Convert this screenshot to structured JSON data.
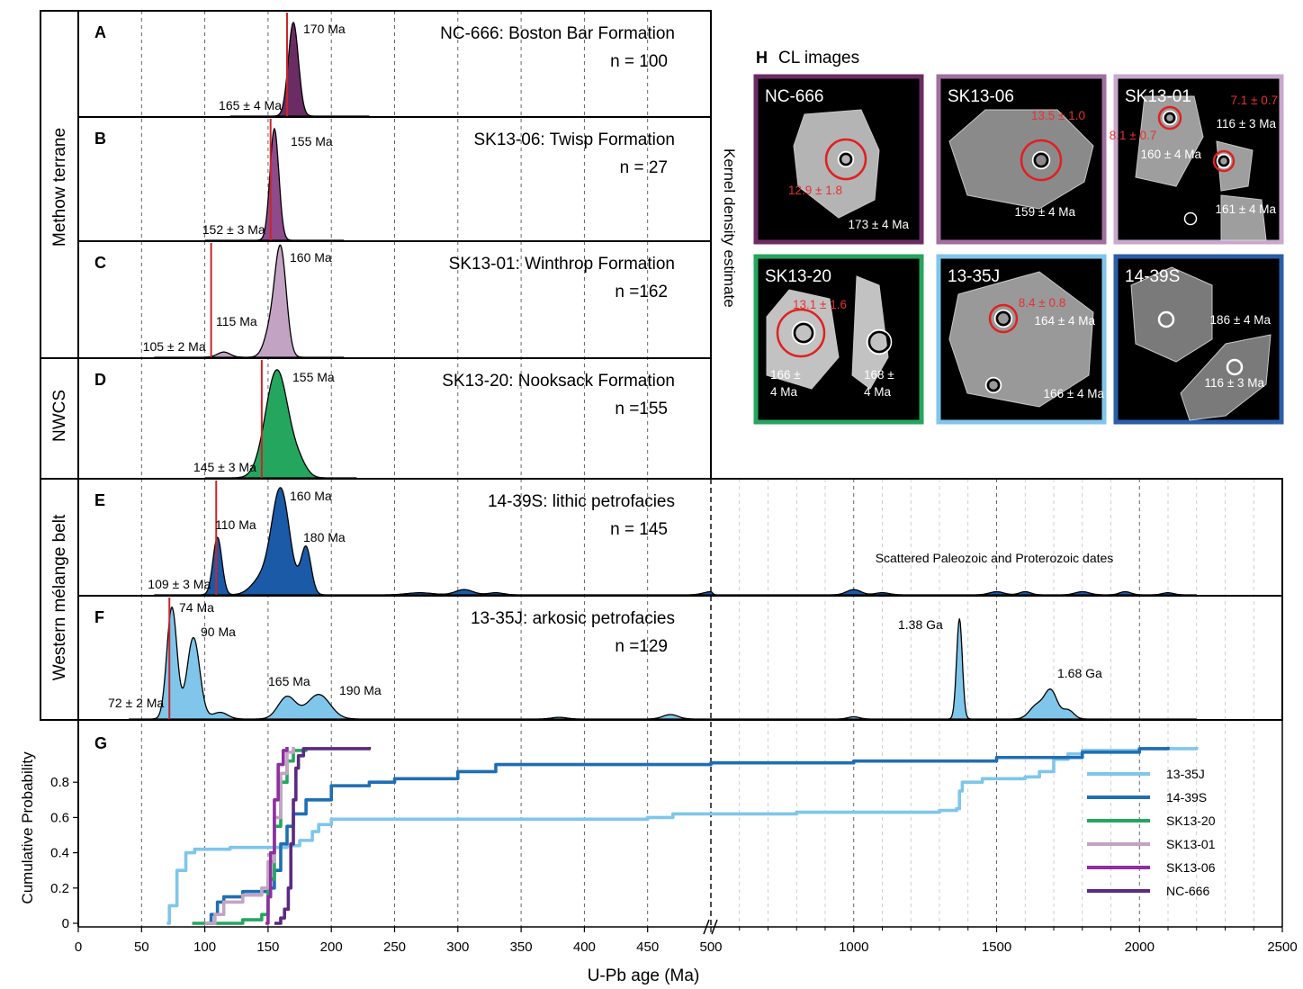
{
  "panels": [
    {
      "letter": "A",
      "title": "NC-666: Boston Bar Formation",
      "n": "n = 100",
      "peaks": [
        "170 Ma"
      ],
      "min_label": "165 ± 4 Ma",
      "red_line_age": 165,
      "color": "#6b2c64"
    },
    {
      "letter": "B",
      "title": "SK13-06: Twisp Formation",
      "n": "n = 27",
      "peaks": [
        "155 Ma"
      ],
      "min_label": "152 ± 3 Ma",
      "red_line_age": 152,
      "color": "#8e4a8a"
    },
    {
      "letter": "C",
      "title": "SK13-01: Winthrop Formation",
      "n": "n =162",
      "peaks": [
        "160 Ma",
        "115 Ma"
      ],
      "min_label": "105 ± 2 Ma",
      "red_line_age": 105,
      "color": "#c3a3c4"
    },
    {
      "letter": "D",
      "title": "SK13-20: Nooksack Formation",
      "n": "n =155",
      "peaks": [
        "155 Ma"
      ],
      "min_label": "145 ± 3 Ma",
      "red_line_age": 145,
      "color": "#25a65e"
    },
    {
      "letter": "E",
      "title": "14-39S: lithic petrofacies",
      "n": "n = 145",
      "peaks": [
        "160 Ma",
        "110 Ma",
        "180 Ma"
      ],
      "min_label": "109 ± 3 Ma",
      "red_line_age": 109,
      "color": "#1a5aa6",
      "note": "Scattered Paleozoic and Proterozoic dates"
    },
    {
      "letter": "F",
      "title": "13-35J: arkosic petrofacies",
      "n": "n =129",
      "peaks": [
        "74 Ma",
        "90 Ma",
        "165 Ma",
        "190 Ma",
        "1.38 Ga",
        "1.68 Ga"
      ],
      "min_label": "72 ± 2 Ma",
      "red_line_age": 72,
      "color": "#7fc6ea"
    }
  ],
  "group_labels": [
    "Methow terrane",
    "NWCS",
    "Western mélange belt"
  ],
  "kde_label": "Kernel density estimate",
  "panel_g_letter": "G",
  "cl": {
    "title": "CL images",
    "letter": "H",
    "images": [
      {
        "sample": "NC-666",
        "border": "#6b2c64",
        "labels_white": [
          "173 ± 4 Ma"
        ],
        "labels_red": [
          "12.9 ± 1.8"
        ]
      },
      {
        "sample": "SK13-06",
        "border": "#a070a0",
        "labels_white": [
          "159 ± 4 Ma"
        ],
        "labels_red": [
          "13.5 ± 1.0"
        ]
      },
      {
        "sample": "SK13-01",
        "border": "#c8a8cc",
        "labels_white": [
          "116 ± 3 Ma",
          "160 ± 4 Ma",
          "161 ± 4 Ma"
        ],
        "labels_red": [
          "7.1 ± 0.7",
          "8.1 ± 0.7"
        ]
      },
      {
        "sample": "SK13-20",
        "border": "#25a65e",
        "labels_white": [
          "166 ±",
          "4 Ma",
          "168 ±",
          "4 Ma"
        ],
        "labels_red": [
          "13.1 ± 1.6"
        ]
      },
      {
        "sample": "13-35J",
        "border": "#7fc6ea",
        "labels_white": [
          "164 ± 4 Ma",
          "166 ± 4 Ma"
        ],
        "labels_red": [
          "8.4 ± 0.8"
        ]
      },
      {
        "sample": "14-39S",
        "border": "#2a5ea8",
        "labels_white": [
          "186 ± 4 Ma",
          "116 ± 3 Ma"
        ],
        "labels_red": []
      }
    ]
  },
  "colors": {
    "red_line": "#c8252b",
    "frame": "#000000"
  },
  "chart_data": {
    "type": "line",
    "ylabel": "Cumulative Probability",
    "xlabel": "U-Pb age (Ma)",
    "xticks": [
      "0",
      "50",
      "100",
      "150",
      "200",
      "250",
      "300",
      "350",
      "400",
      "450",
      "500",
      "1000",
      "1500",
      "2000",
      "2500"
    ],
    "yticks": [
      "0",
      "0.2",
      "0.4",
      "0.6",
      "0.8"
    ],
    "axis_break_at": 500,
    "xlim": [
      0,
      2500
    ],
    "ylim": [
      0,
      1
    ],
    "legend_position": "lower-right",
    "series": [
      {
        "name": "13-35J",
        "color": "#7fc6ea",
        "x": [
          70,
          72,
          78,
          85,
          92,
          100,
          110,
          120,
          150,
          165,
          175,
          185,
          190,
          200,
          300,
          450,
          470,
          500,
          800,
          1300,
          1360,
          1370,
          1380,
          1450,
          1600,
          1650,
          1700,
          1750,
          1800,
          2000,
          2200
        ],
        "y": [
          0,
          0.1,
          0.3,
          0.4,
          0.42,
          0.42,
          0.42,
          0.43,
          0.43,
          0.44,
          0.47,
          0.52,
          0.56,
          0.59,
          0.59,
          0.6,
          0.62,
          0.62,
          0.63,
          0.64,
          0.65,
          0.75,
          0.8,
          0.82,
          0.83,
          0.86,
          0.93,
          0.96,
          0.98,
          0.99,
          1
        ]
      },
      {
        "name": "14-39S",
        "color": "#1f6eb4",
        "x": [
          100,
          105,
          110,
          115,
          130,
          150,
          155,
          160,
          165,
          170,
          180,
          200,
          230,
          250,
          300,
          330,
          400,
          500,
          1000,
          1500,
          1800,
          2000,
          2100
        ],
        "y": [
          0,
          0.05,
          0.12,
          0.15,
          0.18,
          0.2,
          0.3,
          0.45,
          0.55,
          0.62,
          0.7,
          0.78,
          0.8,
          0.82,
          0.86,
          0.9,
          0.9,
          0.91,
          0.92,
          0.94,
          0.97,
          0.99,
          1
        ]
      },
      {
        "name": "SK13-20",
        "color": "#25a65e",
        "x": [
          90,
          130,
          145,
          150,
          155,
          160,
          165,
          170,
          180
        ],
        "y": [
          0,
          0.02,
          0.05,
          0.25,
          0.55,
          0.8,
          0.92,
          0.98,
          1
        ]
      },
      {
        "name": "SK13-01",
        "color": "#c3a3c4",
        "x": [
          100,
          108,
          115,
          130,
          145,
          150,
          155,
          160,
          165,
          170
        ],
        "y": [
          0,
          0.05,
          0.12,
          0.16,
          0.2,
          0.35,
          0.6,
          0.85,
          0.97,
          1
        ]
      },
      {
        "name": "SK13-06",
        "color": "#8e2ea0",
        "x": [
          148,
          150,
          152,
          155,
          158,
          162,
          165
        ],
        "y": [
          0,
          0.15,
          0.4,
          0.7,
          0.9,
          0.98,
          1
        ]
      },
      {
        "name": "NC-666",
        "color": "#5b2a82",
        "x": [
          155,
          160,
          163,
          166,
          168,
          170,
          172,
          174,
          178,
          230
        ],
        "y": [
          0,
          0.03,
          0.08,
          0.2,
          0.45,
          0.7,
          0.88,
          0.95,
          0.99,
          1
        ]
      }
    ]
  }
}
